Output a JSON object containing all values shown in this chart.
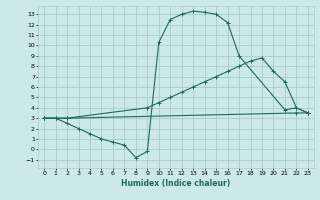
{
  "xlabel": "Humidex (Indice chaleur)",
  "bg_color": "#cce8e8",
  "grid_color": "#aacccc",
  "line_color": "#1a6b5a",
  "xlim": [
    -0.5,
    23.5
  ],
  "ylim": [
    -1.8,
    13.8
  ],
  "xticks": [
    0,
    1,
    2,
    3,
    4,
    5,
    6,
    7,
    8,
    9,
    10,
    11,
    12,
    13,
    14,
    15,
    16,
    17,
    18,
    19,
    20,
    21,
    22,
    23
  ],
  "yticks": [
    -1,
    0,
    1,
    2,
    3,
    4,
    5,
    6,
    7,
    8,
    9,
    10,
    11,
    12,
    13
  ],
  "series": [
    {
      "x": [
        0,
        1,
        2,
        22,
        23
      ],
      "y": [
        3.0,
        3.0,
        3.0,
        3.5,
        3.5
      ]
    },
    {
      "x": [
        0,
        1,
        2,
        9,
        10,
        11,
        12,
        13,
        14,
        15,
        16,
        17,
        18,
        19,
        20,
        21,
        22,
        23
      ],
      "y": [
        3.0,
        3.0,
        3.0,
        4.0,
        4.5,
        5.0,
        5.5,
        6.0,
        6.5,
        7.0,
        7.5,
        8.0,
        8.5,
        8.8,
        7.5,
        6.5,
        4.0,
        3.5
      ]
    },
    {
      "x": [
        0,
        1,
        2,
        3,
        4,
        5,
        6,
        7,
        8,
        9,
        10,
        11,
        12,
        13,
        14,
        15,
        16,
        17,
        21,
        22,
        23
      ],
      "y": [
        3.0,
        3.0,
        2.5,
        2.0,
        1.5,
        1.0,
        0.7,
        0.4,
        -0.8,
        -0.2,
        10.3,
        12.5,
        13.0,
        13.3,
        13.2,
        13.0,
        12.2,
        9.0,
        3.8,
        4.0,
        3.5
      ]
    }
  ]
}
